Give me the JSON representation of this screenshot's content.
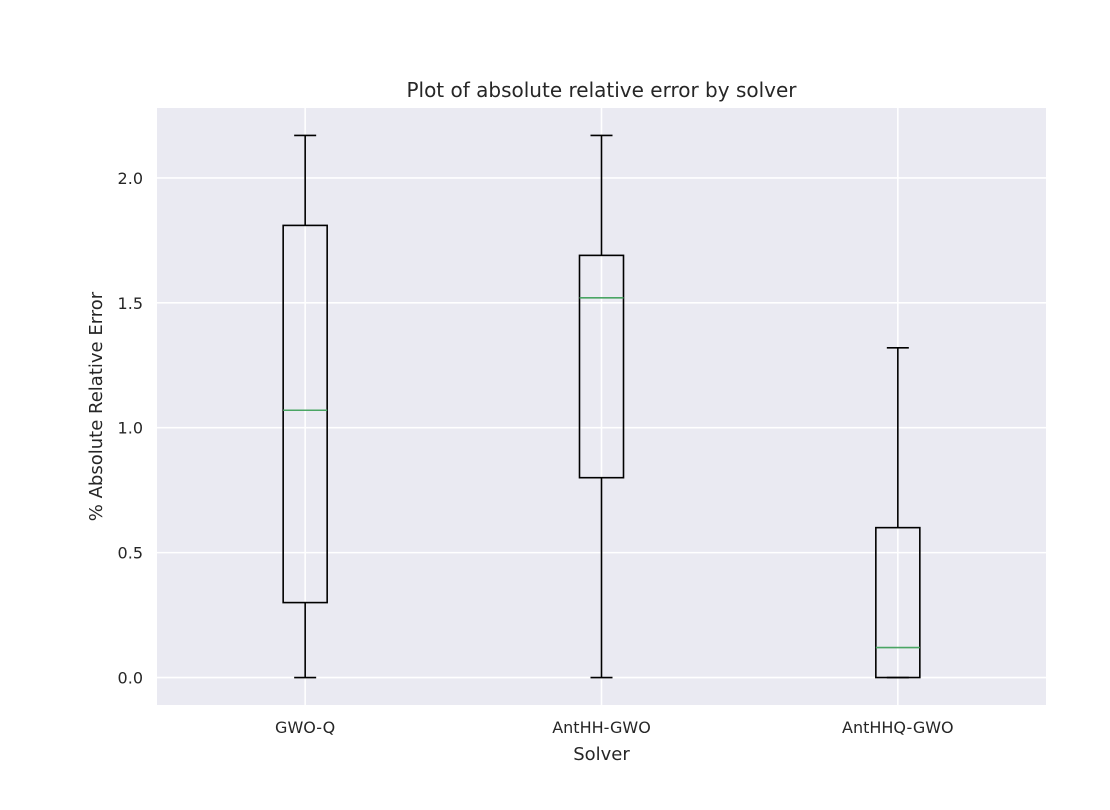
{
  "chart_data": {
    "type": "box",
    "title": "Plot of absolute relative error by solver",
    "xlabel": "Solver",
    "ylabel": "% Absolute Relative Error",
    "ylim": [
      -0.11,
      2.28
    ],
    "yticks": [
      "0.0",
      "0.5",
      "1.0",
      "1.5",
      "2.0"
    ],
    "ytick_values": [
      0.0,
      0.5,
      1.0,
      1.5,
      2.0
    ],
    "grid": true,
    "background": "#eaeaf2",
    "median_color": "#4aa564",
    "categories": [
      "GWO-Q",
      "AntHH-GWO",
      "AntHHQ-GWO"
    ],
    "boxes": [
      {
        "name": "GWO-Q",
        "whisker_low": 0.0,
        "q1": 0.3,
        "median": 1.07,
        "q3": 1.81,
        "whisker_high": 2.17
      },
      {
        "name": "AntHH-GWO",
        "whisker_low": 0.0,
        "q1": 0.8,
        "median": 1.52,
        "q3": 1.69,
        "whisker_high": 2.17
      },
      {
        "name": "AntHHQ-GWO",
        "whisker_low": 0.0,
        "q1": 0.0,
        "median": 0.12,
        "q3": 0.6,
        "whisker_high": 1.32
      }
    ]
  }
}
